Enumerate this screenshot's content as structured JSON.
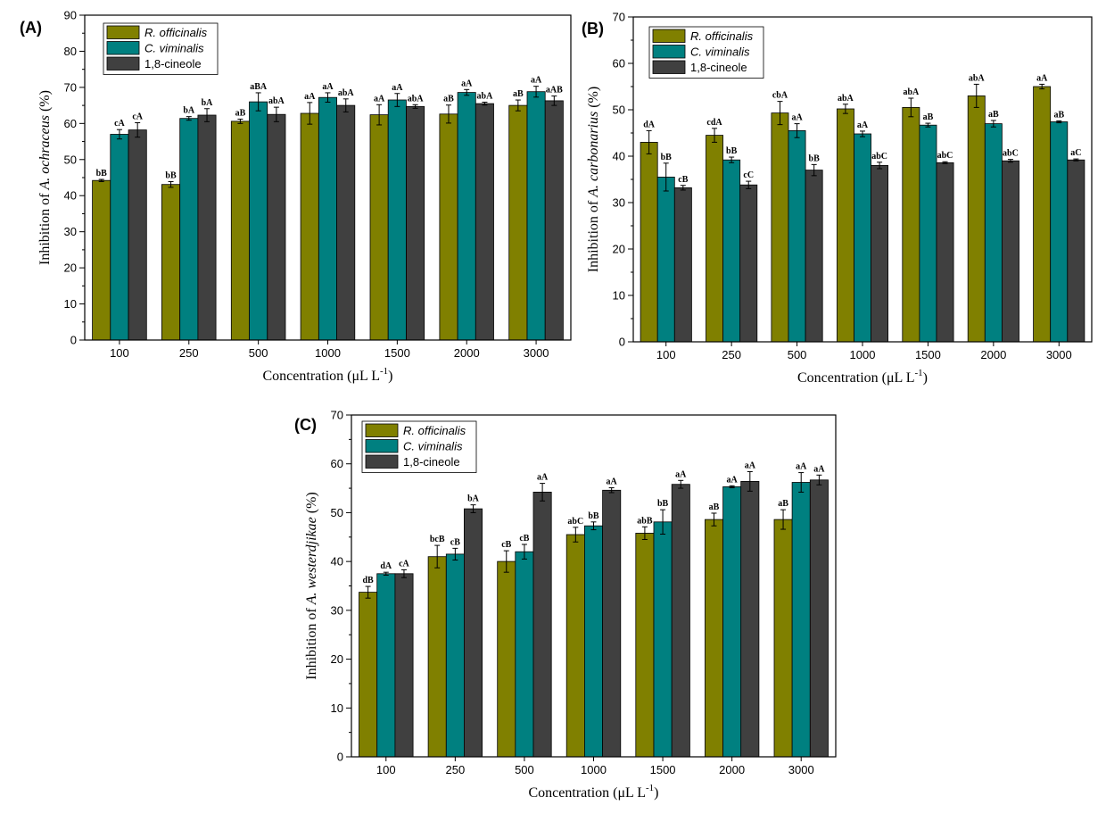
{
  "chart_data": [
    {
      "type": "bar",
      "panel": "(A)",
      "categories": [
        "100",
        "250",
        "500",
        "1000",
        "1500",
        "2000",
        "3000"
      ],
      "ylabel_pre": "Inhibition of ",
      "ylabel_species": "A. ochraceus",
      "ylabel_post": " (%)",
      "xlabel": "Concentration (μL L",
      "xlabel_sup": "-1",
      "xlabel_post": ")",
      "ylim": [
        0,
        90
      ],
      "yticks": [
        0,
        10,
        20,
        30,
        40,
        50,
        60,
        70,
        80,
        90
      ],
      "ytick_labels": [
        "0",
        "10",
        "20",
        "30",
        "40",
        "50",
        "60",
        "70",
        "80",
        "90"
      ],
      "legend_position": "top-left",
      "series": [
        {
          "name": "R. officinalis",
          "italic": true,
          "color": "#808000",
          "values": [
            44.2,
            43.1,
            60.6,
            62.8,
            62.4,
            62.6,
            65.0
          ],
          "errors": [
            0.3,
            0.8,
            0.6,
            3.0,
            2.8,
            2.5,
            1.5
          ],
          "labels": [
            "bB",
            "bB",
            "aB",
            "aA",
            "aA",
            "aB",
            "aB"
          ]
        },
        {
          "name": "C. viminalis",
          "italic": true,
          "color": "#008080",
          "values": [
            57.0,
            61.4,
            66.0,
            67.2,
            66.5,
            68.6,
            68.8
          ],
          "errors": [
            1.3,
            0.5,
            2.5,
            1.3,
            1.8,
            0.8,
            1.5
          ],
          "labels": [
            "cA",
            "bA",
            "aBA",
            "aA",
            "aA",
            "aA",
            "aA"
          ]
        },
        {
          "name": "1,8-cineole",
          "italic": false,
          "color": "#404040",
          "values": [
            58.2,
            62.3,
            62.5,
            65.0,
            64.7,
            65.5,
            66.3
          ],
          "errors": [
            2.0,
            1.8,
            2.0,
            1.8,
            0.5,
            0.4,
            1.3
          ],
          "labels": [
            "cA",
            "bA",
            "abA",
            "abA",
            "abA",
            "abA",
            "aAB"
          ]
        }
      ]
    },
    {
      "type": "bar",
      "panel": "(B)",
      "categories": [
        "100",
        "250",
        "500",
        "1000",
        "1500",
        "2000",
        "3000"
      ],
      "ylabel_pre": "Inhibition of ",
      "ylabel_species": "A. carbonarius",
      "ylabel_post": " (%)",
      "xlabel": "Concentration (μL L",
      "xlabel_sup": "-1",
      "xlabel_post": ")",
      "ylim": [
        0,
        70
      ],
      "yticks": [
        0,
        10,
        20,
        30,
        40,
        50,
        60,
        70
      ],
      "ytick_labels": [
        "0",
        "10",
        "20",
        "30",
        "40",
        "50",
        "60",
        "70"
      ],
      "legend_position": "top-left",
      "series": [
        {
          "name": "R. officinalis",
          "italic": true,
          "color": "#808000",
          "values": [
            43.0,
            44.5,
            49.3,
            50.2,
            50.5,
            53.0,
            55.0
          ],
          "errors": [
            2.5,
            1.5,
            2.5,
            1.0,
            2.0,
            2.5,
            0.5
          ],
          "labels": [
            "dA",
            "cdA",
            "cbA",
            "abA",
            "abA",
            "abA",
            "aA"
          ]
        },
        {
          "name": "C. viminalis",
          "italic": true,
          "color": "#008080",
          "values": [
            35.5,
            39.2,
            45.5,
            44.8,
            46.7,
            47.0,
            47.4
          ],
          "errors": [
            3.0,
            0.6,
            1.5,
            0.6,
            0.4,
            0.7,
            0.2
          ],
          "labels": [
            "bB",
            "bB",
            "aA",
            "aA",
            "aB",
            "aB",
            "aB"
          ]
        },
        {
          "name": "1,8-cineole",
          "italic": false,
          "color": "#404040",
          "values": [
            33.2,
            33.8,
            37.0,
            38.0,
            38.6,
            39.0,
            39.2
          ],
          "errors": [
            0.5,
            0.8,
            1.2,
            0.7,
            0.2,
            0.3,
            0.2
          ],
          "labels": [
            "cB",
            "cC",
            "bB",
            "abC",
            "abC",
            "abC",
            "aC"
          ]
        }
      ]
    },
    {
      "type": "bar",
      "panel": "(C)",
      "categories": [
        "100",
        "250",
        "500",
        "1000",
        "1500",
        "2000",
        "3000"
      ],
      "ylabel_pre": "Inhibition of ",
      "ylabel_species": "A. westerdjikae",
      "ylabel_post": " (%)",
      "xlabel": "Concentration (μL L",
      "xlabel_sup": "-1",
      "xlabel_post": ")",
      "ylim": [
        0,
        70
      ],
      "yticks": [
        0,
        10,
        20,
        30,
        40,
        50,
        60,
        70
      ],
      "ytick_labels": [
        "0",
        "10",
        "20",
        "30",
        "40",
        "50",
        "60",
        "70"
      ],
      "legend_position": "top-left",
      "series": [
        {
          "name": "R. officinalis",
          "italic": true,
          "color": "#808000",
          "values": [
            33.7,
            41.0,
            40.0,
            45.5,
            45.8,
            48.6,
            48.6
          ],
          "errors": [
            1.2,
            2.3,
            2.2,
            1.5,
            1.3,
            1.3,
            2.0
          ],
          "labels": [
            "dB",
            "bcB",
            "cB",
            "abC",
            "abB",
            "aB",
            "aB"
          ]
        },
        {
          "name": "C. viminalis",
          "italic": true,
          "color": "#008080",
          "values": [
            37.5,
            41.5,
            42.0,
            47.3,
            48.1,
            55.3,
            56.2
          ],
          "errors": [
            0.3,
            1.2,
            1.5,
            0.8,
            2.5,
            0.2,
            2.0
          ],
          "labels": [
            "dA",
            "cB",
            "cB",
            "bB",
            "bB",
            "aA",
            "aA"
          ]
        },
        {
          "name": "1,8-cineole",
          "italic": false,
          "color": "#404040",
          "values": [
            37.5,
            50.8,
            54.2,
            54.6,
            55.8,
            56.4,
            56.7
          ],
          "errors": [
            0.8,
            0.8,
            1.8,
            0.5,
            0.8,
            2.0,
            1.0
          ],
          "labels": [
            "cA",
            "bA",
            "aA",
            "aA",
            "aA",
            "aA",
            "aA"
          ]
        }
      ]
    }
  ]
}
